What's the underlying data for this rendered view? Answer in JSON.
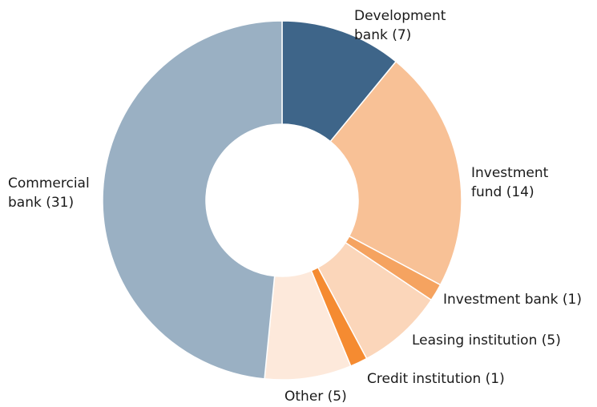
{
  "chart_data": {
    "type": "donut",
    "categories": [
      "Development bank (7)",
      "Investment fund (14)",
      "Investment bank (1)",
      "Leasing institution (5)",
      "Credit institution (1)",
      "Other (5)",
      "Commercial bank (31)"
    ],
    "values": [
      7,
      14,
      1,
      5,
      1,
      5,
      31
    ],
    "colors": [
      "#3e6589",
      "#f8c196",
      "#f5a360",
      "#fbd6ba",
      "#f58b31",
      "#fde9db",
      "#9ab0c3"
    ]
  }
}
